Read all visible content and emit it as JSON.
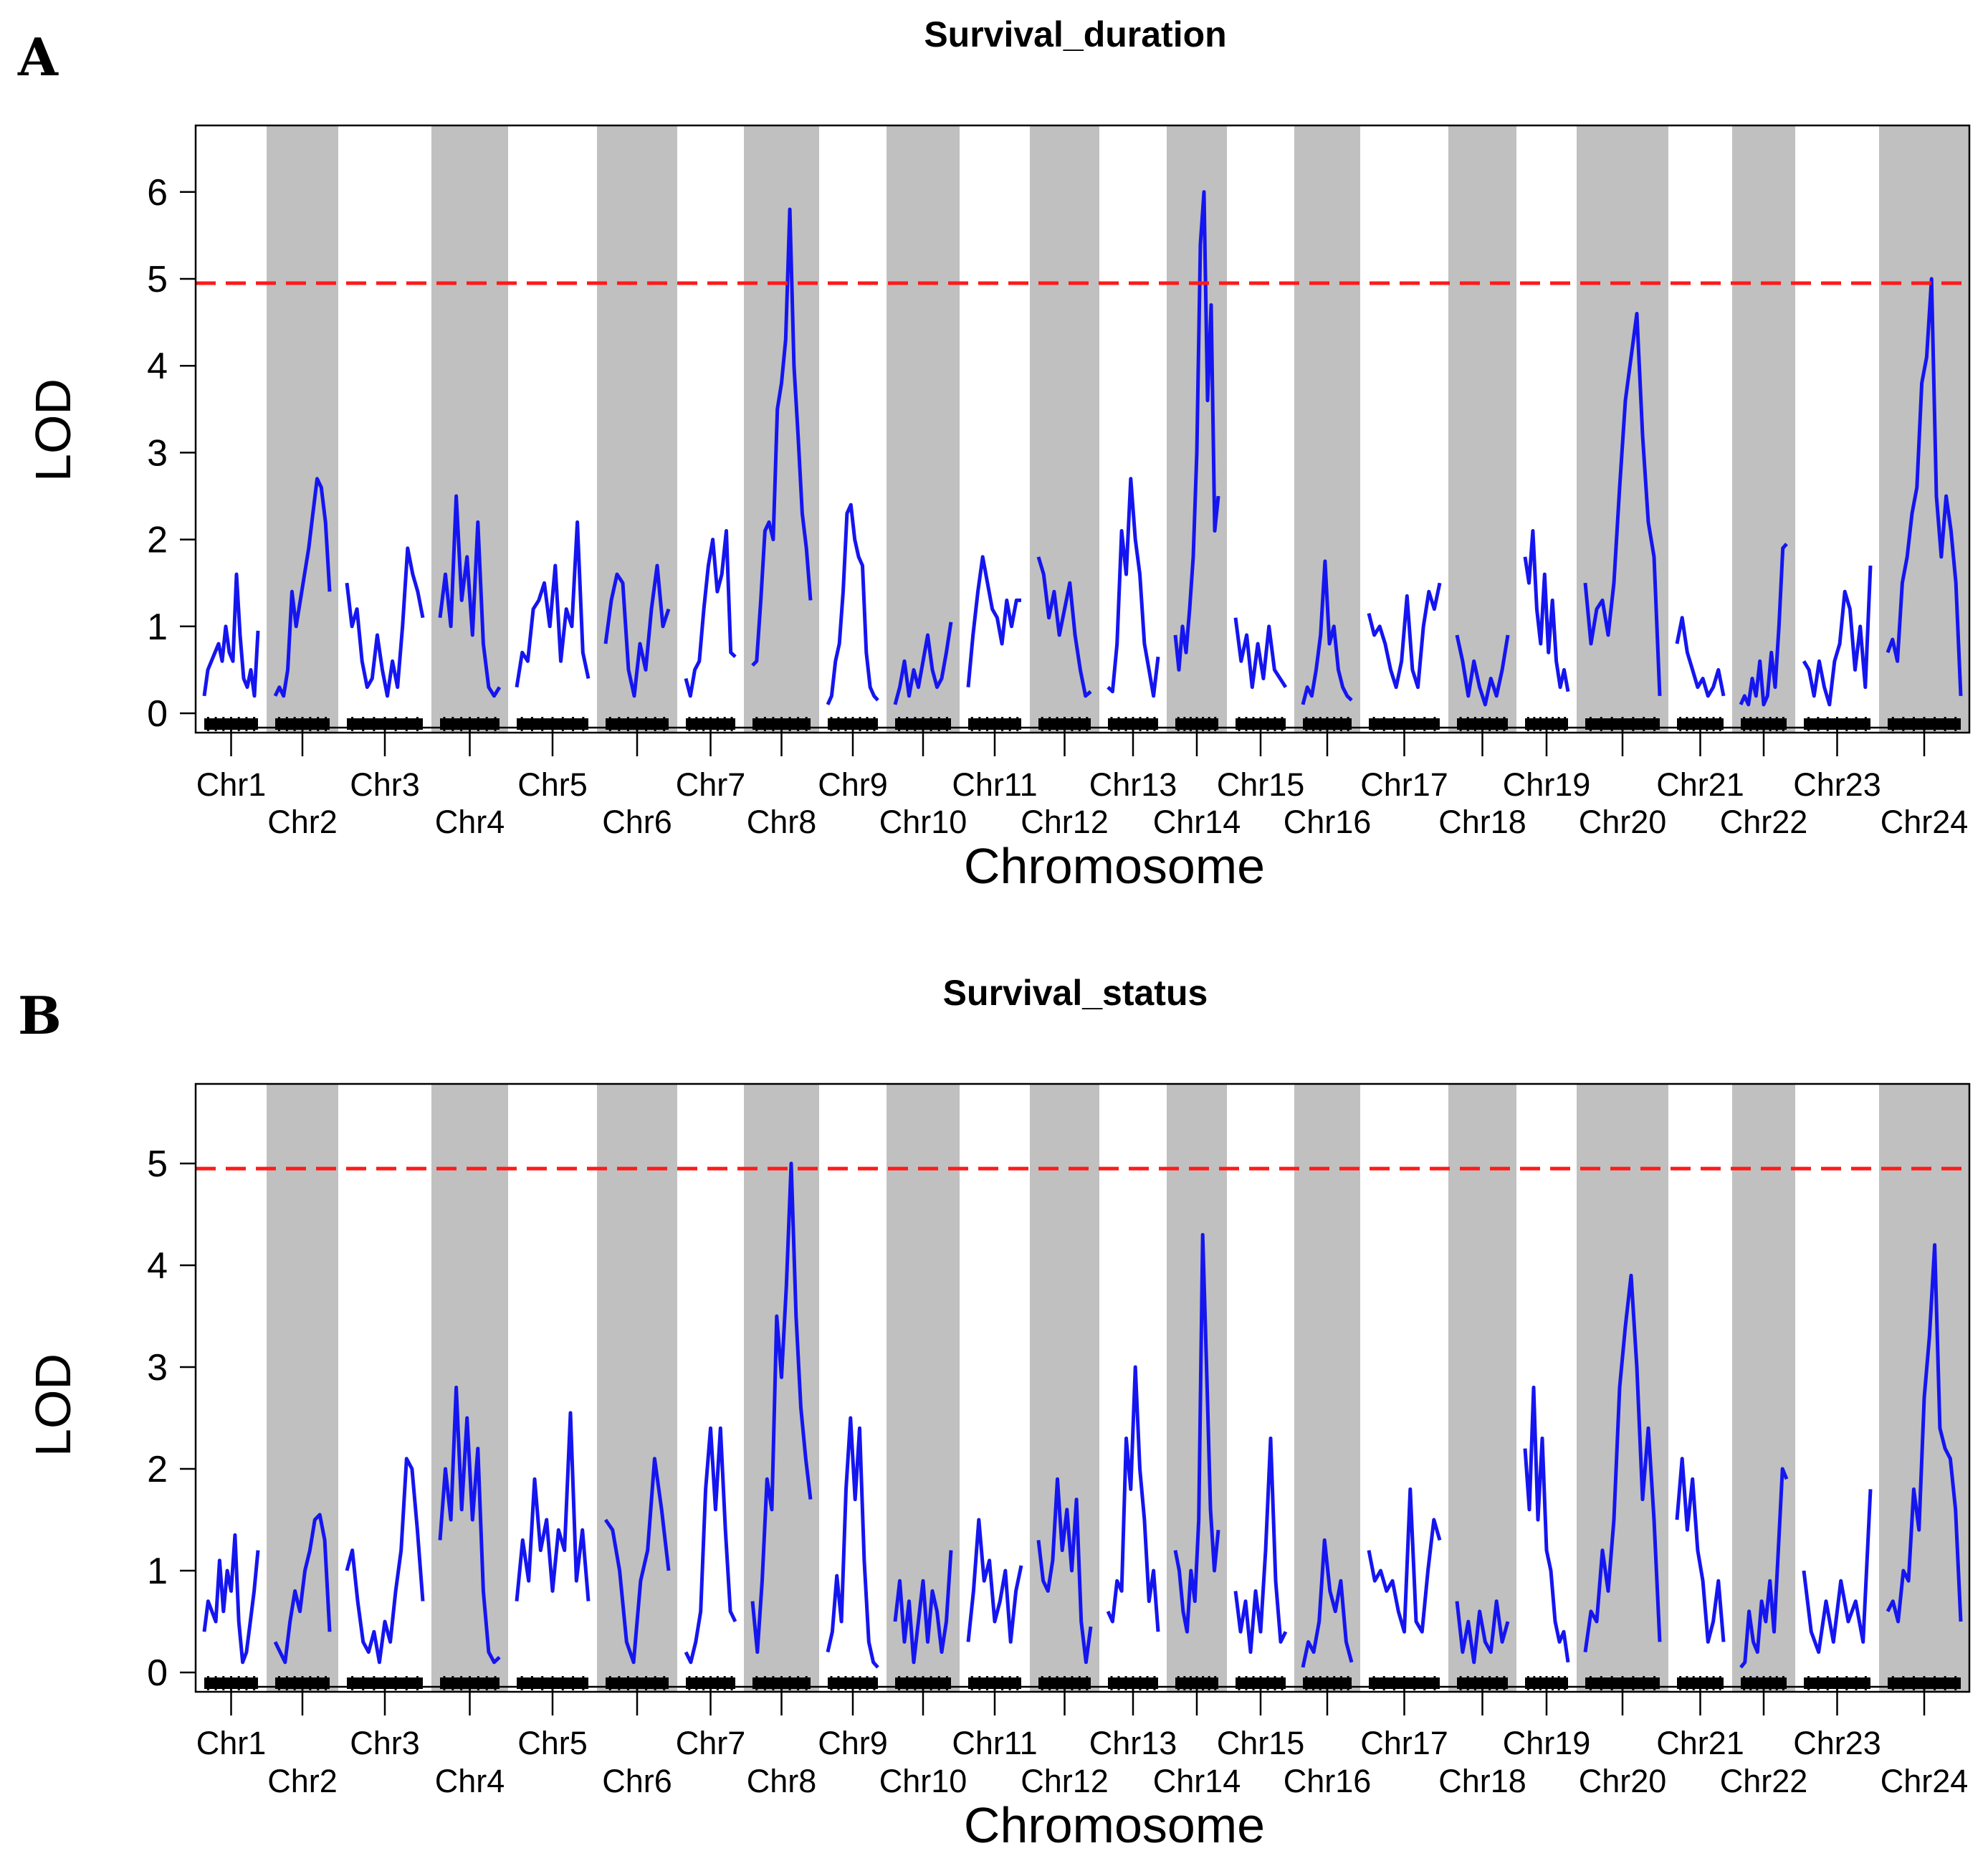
{
  "chart_data": [
    {
      "panel": "A",
      "type": "line",
      "title": "Survival_duration",
      "xlabel": "Chromosome",
      "ylabel": "LOD",
      "yticks": [
        0,
        1,
        2,
        3,
        4,
        5,
        6
      ],
      "ylim": [
        0,
        6.7
      ],
      "threshold": 4.95,
      "colors": {
        "line": "#1515f0",
        "threshold": "#ff1a1a",
        "band": "#c0c0c0"
      },
      "chromosomes": [
        {
          "name": "Chr1",
          "lod": [
            0.2,
            0.5,
            0.6,
            0.7,
            0.8,
            0.6,
            1.0,
            0.7,
            0.6,
            1.6,
            0.9,
            0.4,
            0.3,
            0.5,
            0.2,
            0.95
          ]
        },
        {
          "name": "Chr2",
          "lod": [
            0.2,
            0.3,
            0.2,
            0.5,
            1.4,
            1.0,
            1.3,
            1.6,
            1.9,
            2.3,
            2.7,
            2.6,
            2.2,
            1.4
          ]
        },
        {
          "name": "Chr3",
          "lod": [
            1.5,
            1.0,
            1.2,
            0.6,
            0.3,
            0.4,
            0.9,
            0.5,
            0.2,
            0.6,
            0.3,
            1.0,
            1.9,
            1.6,
            1.4,
            1.1
          ]
        },
        {
          "name": "Chr4",
          "lod": [
            1.1,
            1.6,
            1.0,
            2.5,
            1.3,
            1.8,
            0.9,
            2.2,
            0.8,
            0.3,
            0.2,
            0.3
          ]
        },
        {
          "name": "Chr5",
          "lod": [
            0.3,
            0.7,
            0.6,
            1.2,
            1.3,
            1.5,
            1.0,
            1.7,
            0.6,
            1.2,
            1.0,
            2.2,
            0.7,
            0.4
          ]
        },
        {
          "name": "Chr6",
          "lod": [
            0.8,
            1.3,
            1.6,
            1.5,
            0.5,
            0.2,
            0.8,
            0.5,
            1.2,
            1.7,
            1.0,
            1.2
          ]
        },
        {
          "name": "Chr7",
          "lod": [
            0.4,
            0.2,
            0.5,
            0.6,
            1.2,
            1.7,
            2.0,
            1.4,
            1.6,
            2.1,
            0.7,
            0.65
          ]
        },
        {
          "name": "Chr8",
          "lod": [
            0.55,
            0.6,
            1.3,
            2.1,
            2.2,
            2.0,
            3.5,
            3.8,
            4.3,
            5.8,
            4.0,
            3.2,
            2.3,
            1.9,
            1.3
          ]
        },
        {
          "name": "Chr9",
          "lod": [
            0.1,
            0.2,
            0.6,
            0.8,
            1.4,
            2.3,
            2.4,
            2.0,
            1.8,
            1.7,
            0.7,
            0.3,
            0.2,
            0.15
          ]
        },
        {
          "name": "Chr10",
          "lod": [
            0.1,
            0.3,
            0.6,
            0.2,
            0.5,
            0.3,
            0.6,
            0.9,
            0.5,
            0.3,
            0.4,
            0.7,
            1.05
          ]
        },
        {
          "name": "Chr11",
          "lod": [
            0.3,
            0.9,
            1.4,
            1.8,
            1.5,
            1.2,
            1.1,
            0.8,
            1.3,
            1.0,
            1.3,
            1.3
          ]
        },
        {
          "name": "Chr12",
          "lod": [
            1.8,
            1.6,
            1.1,
            1.4,
            0.9,
            1.2,
            1.5,
            0.9,
            0.5,
            0.2,
            0.25
          ]
        },
        {
          "name": "Chr13",
          "lod": [
            0.3,
            0.25,
            0.8,
            2.1,
            1.6,
            2.7,
            2.0,
            1.6,
            0.8,
            0.5,
            0.2,
            0.65
          ]
        },
        {
          "name": "Chr14",
          "lod": [
            0.9,
            0.5,
            1.0,
            0.7,
            1.2,
            1.8,
            3.0,
            5.4,
            6.0,
            3.6,
            4.7,
            2.1,
            2.5
          ]
        },
        {
          "name": "Chr15",
          "lod": [
            1.1,
            0.6,
            0.9,
            0.3,
            0.8,
            0.4,
            1.0,
            0.5,
            0.4,
            0.3
          ]
        },
        {
          "name": "Chr16",
          "lod": [
            0.1,
            0.3,
            0.2,
            0.5,
            0.9,
            1.75,
            0.8,
            1.0,
            0.5,
            0.3,
            0.2,
            0.15
          ]
        },
        {
          "name": "Chr17",
          "lod": [
            1.15,
            0.9,
            1.0,
            0.8,
            0.5,
            0.3,
            0.6,
            1.35,
            0.5,
            0.3,
            1.0,
            1.4,
            1.2,
            1.5
          ]
        },
        {
          "name": "Chr18",
          "lod": [
            0.9,
            0.6,
            0.2,
            0.6,
            0.3,
            0.1,
            0.4,
            0.2,
            0.5,
            0.9
          ]
        },
        {
          "name": "Chr19",
          "lod": [
            1.8,
            1.5,
            2.1,
            1.2,
            0.8,
            1.6,
            0.7,
            1.3,
            0.6,
            0.3,
            0.5,
            0.25
          ]
        },
        {
          "name": "Chr20",
          "lod": [
            1.5,
            0.8,
            1.2,
            1.3,
            0.9,
            1.5,
            2.6,
            3.6,
            4.1,
            4.6,
            3.2,
            2.2,
            1.8,
            0.2
          ]
        },
        {
          "name": "Chr21",
          "lod": [
            0.8,
            1.1,
            0.7,
            0.5,
            0.3,
            0.4,
            0.2,
            0.3,
            0.5,
            0.2
          ]
        },
        {
          "name": "Chr22",
          "lod": [
            0.1,
            0.2,
            0.1,
            0.4,
            0.2,
            0.6,
            0.1,
            0.2,
            0.7,
            0.3,
            1.0,
            1.9,
            1.95
          ]
        },
        {
          "name": "Chr23",
          "lod": [
            0.6,
            0.5,
            0.2,
            0.6,
            0.3,
            0.1,
            0.6,
            0.8,
            1.4,
            1.2,
            0.5,
            1.0,
            0.3,
            1.7
          ]
        },
        {
          "name": "Chr24",
          "lod": [
            0.7,
            0.85,
            0.6,
            1.5,
            1.8,
            2.3,
            2.6,
            3.8,
            4.1,
            5.0,
            2.5,
            1.8,
            2.5,
            2.1,
            1.5,
            0.2
          ]
        }
      ]
    },
    {
      "panel": "B",
      "type": "line",
      "title": "Survival_status",
      "xlabel": "Chromosome",
      "ylabel": "LOD",
      "yticks": [
        0,
        1,
        2,
        3,
        4,
        5
      ],
      "ylim": [
        0,
        5.75
      ],
      "threshold": 4.95,
      "colors": {
        "line": "#1515f0",
        "threshold": "#ff1a1a",
        "band": "#c0c0c0"
      },
      "chromosomes": [
        {
          "name": "Chr1",
          "lod": [
            0.4,
            0.7,
            0.6,
            0.5,
            1.1,
            0.6,
            1.0,
            0.8,
            1.35,
            0.5,
            0.1,
            0.2,
            0.5,
            0.8,
            1.2
          ]
        },
        {
          "name": "Chr2",
          "lod": [
            0.3,
            0.2,
            0.1,
            0.5,
            0.8,
            0.6,
            1.0,
            1.2,
            1.5,
            1.55,
            1.3,
            0.4
          ]
        },
        {
          "name": "Chr3",
          "lod": [
            1.0,
            1.2,
            0.7,
            0.3,
            0.2,
            0.4,
            0.1,
            0.5,
            0.3,
            0.8,
            1.2,
            2.1,
            2.0,
            1.4,
            0.7
          ]
        },
        {
          "name": "Chr4",
          "lod": [
            1.3,
            2.0,
            1.5,
            2.8,
            1.6,
            2.5,
            1.5,
            2.2,
            0.8,
            0.2,
            0.1,
            0.15
          ]
        },
        {
          "name": "Chr5",
          "lod": [
            0.7,
            1.3,
            0.9,
            1.9,
            1.2,
            1.5,
            0.8,
            1.4,
            1.2,
            2.55,
            0.9,
            1.4,
            0.7
          ]
        },
        {
          "name": "Chr6",
          "lod": [
            1.5,
            1.4,
            1.0,
            0.3,
            0.1,
            0.9,
            1.2,
            2.1,
            1.6,
            1.0
          ]
        },
        {
          "name": "Chr7",
          "lod": [
            0.2,
            0.1,
            0.3,
            0.6,
            1.8,
            2.4,
            1.6,
            2.4,
            1.4,
            0.6,
            0.5
          ]
        },
        {
          "name": "Chr8",
          "lod": [
            0.7,
            0.2,
            0.9,
            1.9,
            1.6,
            3.5,
            2.9,
            3.8,
            5.0,
            3.5,
            2.6,
            2.1,
            1.7
          ]
        },
        {
          "name": "Chr9",
          "lod": [
            0.2,
            0.4,
            0.95,
            0.5,
            1.8,
            2.5,
            1.7,
            2.4,
            1.1,
            0.3,
            0.1,
            0.05
          ]
        },
        {
          "name": "Chr10",
          "lod": [
            0.5,
            0.9,
            0.3,
            0.7,
            0.1,
            0.5,
            0.9,
            0.3,
            0.8,
            0.6,
            0.2,
            0.5,
            1.2
          ]
        },
        {
          "name": "Chr11",
          "lod": [
            0.3,
            0.8,
            1.5,
            0.9,
            1.1,
            0.5,
            0.7,
            1.0,
            0.3,
            0.8,
            1.05
          ]
        },
        {
          "name": "Chr12",
          "lod": [
            1.3,
            0.9,
            0.8,
            1.1,
            1.9,
            1.2,
            1.6,
            1.0,
            1.7,
            0.5,
            0.1,
            0.45
          ]
        },
        {
          "name": "Chr13",
          "lod": [
            0.6,
            0.5,
            0.9,
            0.8,
            2.3,
            1.8,
            3.0,
            2.0,
            1.5,
            0.7,
            1.0,
            0.4
          ]
        },
        {
          "name": "Chr14",
          "lod": [
            1.2,
            1.0,
            0.6,
            0.4,
            1.0,
            0.7,
            1.5,
            4.3,
            3.0,
            1.6,
            1.0,
            1.4
          ]
        },
        {
          "name": "Chr15",
          "lod": [
            0.8,
            0.4,
            0.7,
            0.2,
            0.8,
            0.4,
            1.2,
            2.3,
            0.9,
            0.3,
            0.4
          ]
        },
        {
          "name": "Chr16",
          "lod": [
            0.05,
            0.3,
            0.2,
            0.5,
            1.3,
            0.8,
            0.6,
            0.9,
            0.3,
            0.1
          ]
        },
        {
          "name": "Chr17",
          "lod": [
            1.2,
            0.9,
            1.0,
            0.8,
            0.9,
            0.6,
            0.4,
            1.8,
            0.5,
            0.4,
            1.0,
            1.5,
            1.3
          ]
        },
        {
          "name": "Chr18",
          "lod": [
            0.7,
            0.2,
            0.5,
            0.1,
            0.6,
            0.3,
            0.2,
            0.7,
            0.3,
            0.5
          ]
        },
        {
          "name": "Chr19",
          "lod": [
            2.2,
            1.6,
            2.8,
            1.5,
            2.3,
            1.2,
            1.0,
            0.5,
            0.3,
            0.4,
            0.1
          ]
        },
        {
          "name": "Chr20",
          "lod": [
            0.2,
            0.6,
            0.5,
            1.2,
            0.8,
            1.5,
            2.8,
            3.4,
            3.9,
            3.0,
            1.7,
            2.4,
            1.5,
            0.3
          ]
        },
        {
          "name": "Chr21",
          "lod": [
            1.5,
            2.1,
            1.4,
            1.9,
            1.2,
            0.9,
            0.3,
            0.5,
            0.9,
            0.3
          ]
        },
        {
          "name": "Chr22",
          "lod": [
            0.05,
            0.1,
            0.6,
            0.3,
            0.2,
            0.7,
            0.5,
            0.9,
            0.4,
            1.2,
            2.0,
            1.9
          ]
        },
        {
          "name": "Chr23",
          "lod": [
            1.0,
            0.4,
            0.2,
            0.7,
            0.3,
            0.9,
            0.5,
            0.7,
            0.3,
            1.8
          ]
        },
        {
          "name": "Chr24",
          "lod": [
            0.6,
            0.7,
            0.5,
            1.0,
            0.9,
            1.8,
            1.4,
            2.7,
            3.3,
            4.2,
            2.4,
            2.2,
            2.1,
            1.6,
            0.5
          ]
        }
      ]
    }
  ],
  "panels": {
    "a": {
      "letter": "A"
    },
    "b": {
      "letter": "B"
    }
  }
}
